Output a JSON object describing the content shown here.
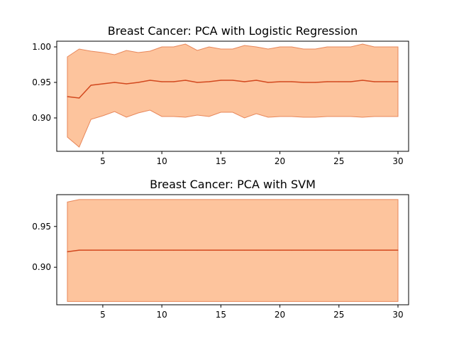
{
  "chart_data": [
    {
      "type": "line",
      "title": "Breast Cancer: PCA with Logistic Regression",
      "xlabel": "",
      "ylabel": "",
      "xlim": [
        1.1,
        30.9
      ],
      "ylim": [
        0.853,
        1.008
      ],
      "xticks": [
        5,
        10,
        15,
        20,
        25,
        30
      ],
      "yticks": [
        0.9,
        0.95,
        1.0
      ],
      "ytick_labels": [
        "0.90",
        "0.95",
        "1.00"
      ],
      "grid": false,
      "colors": {
        "line": "#d2481e",
        "fill": "#fdc49d",
        "fill_edge": "#e8875a"
      },
      "x": [
        2,
        3,
        4,
        5,
        6,
        7,
        8,
        9,
        10,
        11,
        12,
        13,
        14,
        15,
        16,
        17,
        18,
        19,
        20,
        21,
        22,
        23,
        24,
        25,
        26,
        27,
        28,
        29,
        30
      ],
      "series": [
        {
          "mean": [
            0.93,
            0.928,
            0.946,
            0.948,
            0.95,
            0.948,
            0.95,
            0.953,
            0.951,
            0.951,
            0.953,
            0.95,
            0.951,
            0.953,
            0.953,
            0.951,
            0.953,
            0.95,
            0.951,
            0.951,
            0.95,
            0.95,
            0.951,
            0.951,
            0.951,
            0.953,
            0.951,
            0.951,
            0.951
          ],
          "upper": [
            0.986,
            0.997,
            0.994,
            0.992,
            0.989,
            0.995,
            0.992,
            0.994,
            1.0,
            1.0,
            1.004,
            0.995,
            1.0,
            0.997,
            0.997,
            1.002,
            1.0,
            0.997,
            1.0,
            1.0,
            0.997,
            0.997,
            1.0,
            1.0,
            1.0,
            1.004,
            1.0,
            1.0,
            1.0
          ],
          "lower": [
            0.873,
            0.859,
            0.898,
            0.903,
            0.909,
            0.901,
            0.907,
            0.911,
            0.902,
            0.902,
            0.901,
            0.904,
            0.902,
            0.908,
            0.908,
            0.9,
            0.906,
            0.901,
            0.902,
            0.902,
            0.901,
            0.901,
            0.902,
            0.902,
            0.902,
            0.901,
            0.902,
            0.902,
            0.902
          ]
        }
      ]
    },
    {
      "type": "line",
      "title": "Breast Cancer: PCA with SVM",
      "xlabel": "",
      "ylabel": "",
      "xlim": [
        1.1,
        30.9
      ],
      "ylim": [
        0.854,
        0.989
      ],
      "xticks": [
        5,
        10,
        15,
        20,
        25,
        30
      ],
      "yticks": [
        0.9,
        0.95
      ],
      "ytick_labels": [
        "0.90",
        "0.95"
      ],
      "grid": false,
      "colors": {
        "line": "#d2481e",
        "fill": "#fdc49d",
        "fill_edge": "#e8875a"
      },
      "x": [
        2,
        3,
        4,
        5,
        6,
        7,
        8,
        9,
        10,
        11,
        12,
        13,
        14,
        15,
        16,
        17,
        18,
        19,
        20,
        21,
        22,
        23,
        24,
        25,
        26,
        27,
        28,
        29,
        30
      ],
      "series": [
        {
          "mean": [
            0.919,
            0.921,
            0.921,
            0.921,
            0.921,
            0.921,
            0.921,
            0.921,
            0.921,
            0.921,
            0.921,
            0.921,
            0.921,
            0.921,
            0.921,
            0.921,
            0.921,
            0.921,
            0.921,
            0.921,
            0.921,
            0.921,
            0.921,
            0.921,
            0.921,
            0.921,
            0.921,
            0.921,
            0.921
          ],
          "upper": [
            0.98,
            0.983,
            0.983,
            0.983,
            0.983,
            0.983,
            0.983,
            0.983,
            0.983,
            0.983,
            0.983,
            0.983,
            0.983,
            0.983,
            0.983,
            0.983,
            0.983,
            0.983,
            0.983,
            0.983,
            0.983,
            0.983,
            0.983,
            0.983,
            0.983,
            0.983,
            0.983,
            0.983,
            0.983
          ],
          "lower": [
            0.858,
            0.858,
            0.858,
            0.858,
            0.858,
            0.858,
            0.858,
            0.858,
            0.858,
            0.858,
            0.858,
            0.858,
            0.858,
            0.858,
            0.858,
            0.858,
            0.858,
            0.858,
            0.858,
            0.858,
            0.858,
            0.858,
            0.858,
            0.858,
            0.858,
            0.858,
            0.858,
            0.858,
            0.858
          ]
        }
      ]
    }
  ]
}
